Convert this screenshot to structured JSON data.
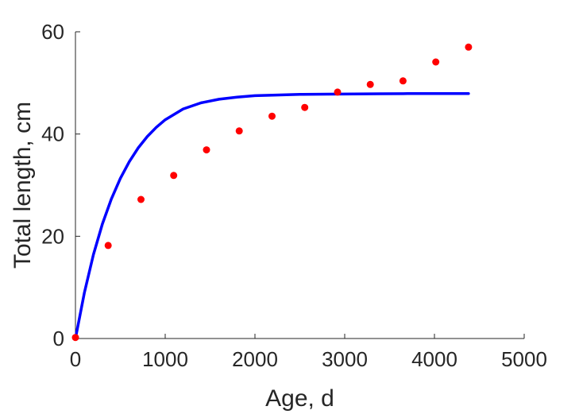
{
  "chart_data": {
    "type": "scatter",
    "xlabel": "Age, d",
    "ylabel": "Total length, cm",
    "xlim": [
      0,
      5000
    ],
    "ylim": [
      0,
      60
    ],
    "xticks": [
      0,
      1000,
      2000,
      3000,
      4000,
      5000
    ],
    "yticks": [
      0,
      20,
      40,
      60
    ],
    "grid": false,
    "legend": "none",
    "series": [
      {
        "kind": "points",
        "color": "#ff0000",
        "x": [
          0,
          365,
          730,
          1095,
          1460,
          1825,
          2190,
          2555,
          2920,
          3285,
          3650,
          4015,
          4380
        ],
        "y": [
          0.2,
          18.2,
          27.2,
          31.9,
          36.9,
          40.6,
          43.5,
          45.2,
          48.2,
          49.7,
          50.4,
          54.1,
          57.0
        ]
      },
      {
        "kind": "line",
        "color": "#0000ff",
        "x": [
          0,
          100,
          200,
          300,
          400,
          500,
          600,
          700,
          800,
          900,
          1000,
          1200,
          1400,
          1600,
          1800,
          2000,
          2200,
          2500,
          2800,
          3100,
          3400,
          3700,
          4000,
          4380
        ],
        "y": [
          0,
          9.0,
          16.4,
          22.4,
          27.3,
          31.3,
          34.6,
          37.3,
          39.5,
          41.3,
          42.8,
          44.9,
          46.1,
          46.8,
          47.2,
          47.5,
          47.6,
          47.75,
          47.8,
          47.85,
          47.88,
          47.9,
          47.9,
          47.9
        ]
      }
    ]
  }
}
